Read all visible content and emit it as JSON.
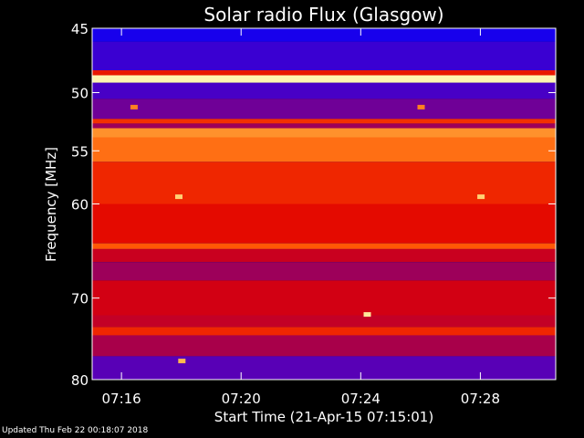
{
  "chart_data": {
    "type": "heatmap",
    "title": "Solar radio Flux (Glasgow)",
    "xlabel": "Start Time (21-Apr-15 07:15:01)",
    "ylabel": "Frequency [MHz]",
    "x_start": "07:15:01",
    "x_range_minutes": [
      0,
      15.5
    ],
    "y_range_mhz": [
      45,
      80
    ],
    "y_ticks": [
      {
        "value": 45,
        "label": "45"
      },
      {
        "value": 50,
        "label": "50"
      },
      {
        "value": 55,
        "label": "55"
      },
      {
        "value": 60,
        "label": "60"
      },
      {
        "value": 70,
        "label": "70"
      },
      {
        "value": 80,
        "label": "80"
      }
    ],
    "x_ticks": [
      {
        "minute": 0.98,
        "label": "07:16"
      },
      {
        "minute": 4.98,
        "label": "07:20"
      },
      {
        "minute": 8.98,
        "label": "07:24"
      },
      {
        "minute": 12.98,
        "label": "07:28"
      }
    ],
    "colormap": [
      "#0000ff",
      "#5000c0",
      "#b00040",
      "#e00000",
      "#ff5000",
      "#ffb040",
      "#ffffc0"
    ],
    "frequency_bands": [
      {
        "from_mhz": 45.0,
        "to_mhz": 46.0,
        "level": 0.05
      },
      {
        "from_mhz": 46.0,
        "to_mhz": 48.2,
        "level": 0.12
      },
      {
        "from_mhz": 48.2,
        "to_mhz": 48.6,
        "level": 0.55
      },
      {
        "from_mhz": 48.6,
        "to_mhz": 49.2,
        "level": 0.98
      },
      {
        "from_mhz": 49.2,
        "to_mhz": 50.5,
        "level": 0.15
      },
      {
        "from_mhz": 50.5,
        "to_mhz": 52.2,
        "level": 0.22
      },
      {
        "from_mhz": 52.2,
        "to_mhz": 52.6,
        "level": 0.6
      },
      {
        "from_mhz": 52.6,
        "to_mhz": 53.0,
        "level": 0.3
      },
      {
        "from_mhz": 53.0,
        "to_mhz": 53.8,
        "level": 0.78
      },
      {
        "from_mhz": 53.8,
        "to_mhz": 56.0,
        "level": 0.72
      },
      {
        "from_mhz": 56.0,
        "to_mhz": 60.0,
        "level": 0.58
      },
      {
        "from_mhz": 60.0,
        "to_mhz": 64.0,
        "level": 0.52
      },
      {
        "from_mhz": 64.0,
        "to_mhz": 64.6,
        "level": 0.68
      },
      {
        "from_mhz": 64.6,
        "to_mhz": 66.0,
        "level": 0.42
      },
      {
        "from_mhz": 66.0,
        "to_mhz": 68.0,
        "level": 0.3
      },
      {
        "from_mhz": 68.0,
        "to_mhz": 72.0,
        "level": 0.45
      },
      {
        "from_mhz": 72.0,
        "to_mhz": 73.4,
        "level": 0.4
      },
      {
        "from_mhz": 73.4,
        "to_mhz": 74.4,
        "level": 0.58
      },
      {
        "from_mhz": 74.4,
        "to_mhz": 77.0,
        "level": 0.32
      },
      {
        "from_mhz": 77.0,
        "to_mhz": 80.0,
        "level": 0.18
      }
    ],
    "bright_spots": [
      {
        "minute": 2.9,
        "mhz": 59.3,
        "level": 0.9
      },
      {
        "minute": 13.0,
        "mhz": 59.3,
        "level": 0.9
      },
      {
        "minute": 9.2,
        "mhz": 71.9,
        "level": 0.95
      },
      {
        "minute": 3.0,
        "mhz": 77.6,
        "level": 0.85
      },
      {
        "minute": 1.4,
        "mhz": 51.2,
        "level": 0.75
      },
      {
        "minute": 11.0,
        "mhz": 51.2,
        "level": 0.75
      }
    ]
  },
  "footer": {
    "updated": "Updated Thu Feb 22 00:18:07 2018"
  }
}
